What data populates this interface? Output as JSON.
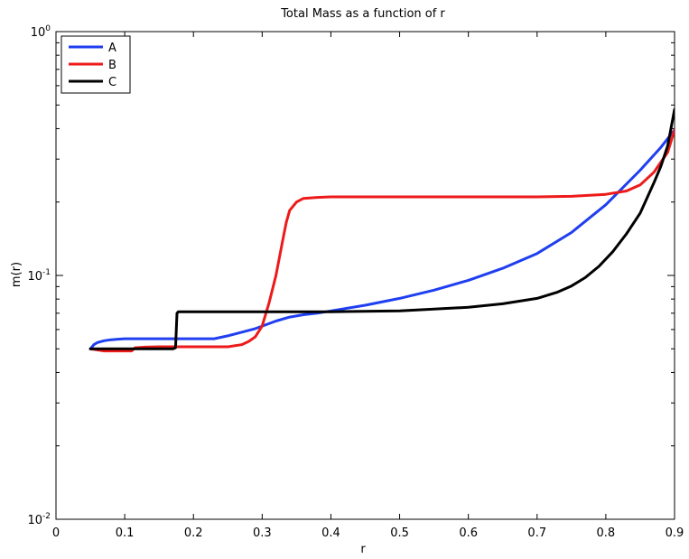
{
  "chart_data": {
    "type": "line",
    "title": "Total Mass as a function of r",
    "xlabel": "r",
    "ylabel": "m(r)",
    "xlim": [
      0,
      0.9
    ],
    "ylim": [
      0.01,
      1
    ],
    "yscale": "log",
    "grid": false,
    "legend_position": "top-left",
    "xticks": [
      0,
      0.1,
      0.2,
      0.3,
      0.4,
      0.5,
      0.6,
      0.7,
      0.8,
      0.9
    ],
    "xtick_labels": [
      "0",
      "0.1",
      "0.2",
      "0.3",
      "0.4",
      "0.5",
      "0.6",
      "0.7",
      "0.8",
      "0.9"
    ],
    "yticks": [
      {
        "value": 0.01,
        "base": "10",
        "exp": "-2"
      },
      {
        "value": 0.1,
        "base": "10",
        "exp": "-1"
      },
      {
        "value": 1,
        "base": "10",
        "exp": "0"
      }
    ],
    "series": [
      {
        "name": "A",
        "color": "#1f3ff0",
        "x": [
          0.05,
          0.055,
          0.06,
          0.065,
          0.07,
          0.08,
          0.1,
          0.15,
          0.2,
          0.23,
          0.25,
          0.27,
          0.29,
          0.3,
          0.32,
          0.34,
          0.36,
          0.38,
          0.4,
          0.45,
          0.5,
          0.55,
          0.6,
          0.65,
          0.7,
          0.75,
          0.8,
          0.85,
          0.88,
          0.9
        ],
        "y": [
          0.05,
          0.052,
          0.053,
          0.0535,
          0.054,
          0.0545,
          0.055,
          0.055,
          0.055,
          0.055,
          0.0565,
          0.0585,
          0.0605,
          0.062,
          0.065,
          0.0675,
          0.069,
          0.07,
          0.0715,
          0.0755,
          0.0805,
          0.087,
          0.0955,
          0.107,
          0.123,
          0.15,
          0.195,
          0.27,
          0.335,
          0.395
        ]
      },
      {
        "name": "B",
        "color": "#ee1a1a",
        "x": [
          0.05,
          0.07,
          0.09,
          0.11,
          0.115,
          0.13,
          0.15,
          0.2,
          0.25,
          0.27,
          0.28,
          0.29,
          0.3,
          0.31,
          0.32,
          0.33,
          0.335,
          0.34,
          0.35,
          0.36,
          0.38,
          0.4,
          0.5,
          0.6,
          0.7,
          0.75,
          0.8,
          0.83,
          0.85,
          0.87,
          0.89,
          0.9
        ],
        "y": [
          0.05,
          0.049,
          0.049,
          0.049,
          0.0505,
          0.0508,
          0.051,
          0.051,
          0.051,
          0.052,
          0.0535,
          0.056,
          0.062,
          0.077,
          0.1,
          0.14,
          0.165,
          0.185,
          0.2,
          0.207,
          0.209,
          0.21,
          0.21,
          0.21,
          0.21,
          0.211,
          0.215,
          0.222,
          0.235,
          0.265,
          0.32,
          0.395
        ]
      },
      {
        "name": "C",
        "color": "#000000",
        "x": [
          0.05,
          0.1,
          0.15,
          0.17,
          0.174,
          0.176,
          0.178,
          0.2,
          0.3,
          0.4,
          0.5,
          0.6,
          0.65,
          0.7,
          0.73,
          0.75,
          0.77,
          0.79,
          0.81,
          0.83,
          0.85,
          0.87,
          0.88,
          0.89,
          0.9
        ],
        "y": [
          0.05,
          0.05,
          0.05,
          0.05,
          0.0505,
          0.07,
          0.071,
          0.071,
          0.071,
          0.071,
          0.0715,
          0.074,
          0.0765,
          0.0805,
          0.0855,
          0.0905,
          0.098,
          0.109,
          0.125,
          0.148,
          0.18,
          0.24,
          0.28,
          0.34,
          0.48
        ]
      }
    ]
  }
}
